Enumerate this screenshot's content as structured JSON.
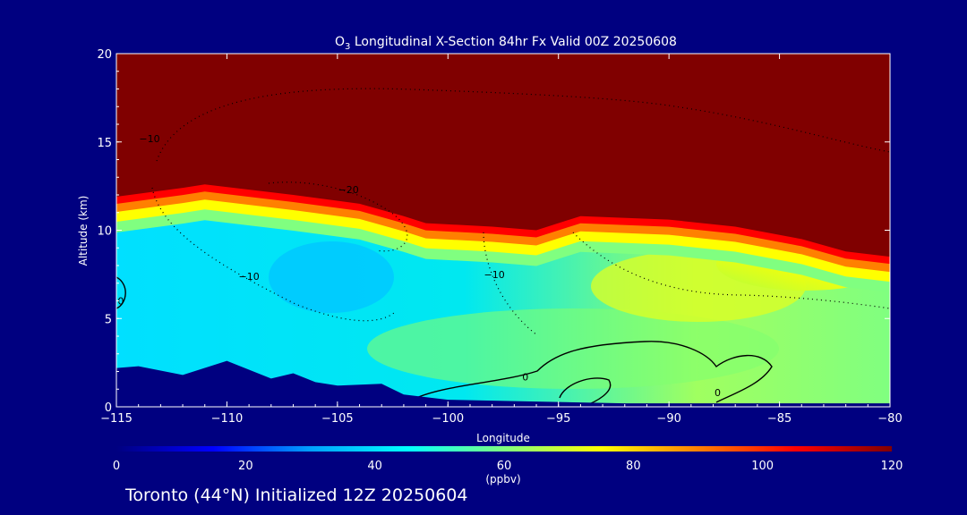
{
  "chart_data": {
    "type": "heatmap",
    "title_species": "O",
    "title_subscript": "3",
    "title_rest": " Longitudinal X-Section 84hr  Fx Valid 00Z 20250608",
    "xlabel": "Longitude",
    "ylabel": "Altitude (km)",
    "xlim": [
      -115,
      -80
    ],
    "ylim": [
      0,
      20
    ],
    "xticks": [
      -115,
      -110,
      -105,
      -100,
      -95,
      -90,
      -85,
      -80
    ],
    "xtick_labels": [
      "−115",
      "−110",
      "−105",
      "−100",
      "−95",
      "−90",
      "−85",
      "−80"
    ],
    "yticks": [
      0,
      5,
      10,
      15,
      20
    ],
    "colorbar": {
      "label": "(ppbv)",
      "range": [
        0,
        120
      ],
      "ticks": [
        0,
        20,
        40,
        60,
        80,
        100,
        120
      ],
      "colors": [
        "#000080",
        "#0000ff",
        "#00a0ff",
        "#00ffff",
        "#80ff80",
        "#ffff00",
        "#ff8000",
        "#ff0000",
        "#800000"
      ]
    },
    "tropopause_height_km": [
      {
        "lon": -115,
        "alt": 11.9
      },
      {
        "lon": -112,
        "alt": 12.4
      },
      {
        "lon": -111,
        "alt": 12.6
      },
      {
        "lon": -109,
        "alt": 12.3
      },
      {
        "lon": -107,
        "alt": 12.0
      },
      {
        "lon": -104,
        "alt": 11.5
      },
      {
        "lon": -102,
        "alt": 10.8
      },
      {
        "lon": -101,
        "alt": 10.4
      },
      {
        "lon": -98,
        "alt": 10.2
      },
      {
        "lon": -96,
        "alt": 10.0
      },
      {
        "lon": -94,
        "alt": 10.8
      },
      {
        "lon": -90,
        "alt": 10.6
      },
      {
        "lon": -87,
        "alt": 10.2
      },
      {
        "lon": -84,
        "alt": 9.5
      },
      {
        "lon": -82,
        "alt": 8.8
      },
      {
        "lon": -80,
        "alt": 8.5
      }
    ],
    "terrain_km": [
      {
        "lon": -115,
        "alt": 2.2
      },
      {
        "lon": -114,
        "alt": 2.3
      },
      {
        "lon": -112,
        "alt": 1.8
      },
      {
        "lon": -110,
        "alt": 2.6
      },
      {
        "lon": -108,
        "alt": 1.6
      },
      {
        "lon": -107,
        "alt": 1.9
      },
      {
        "lon": -106,
        "alt": 1.4
      },
      {
        "lon": -105,
        "alt": 1.2
      },
      {
        "lon": -103,
        "alt": 1.3
      },
      {
        "lon": -102,
        "alt": 0.7
      },
      {
        "lon": -100,
        "alt": 0.4
      },
      {
        "lon": -96,
        "alt": 0.3
      },
      {
        "lon": -92,
        "alt": 0.2
      },
      {
        "lon": -88,
        "alt": 0.2
      },
      {
        "lon": -84,
        "alt": 0.2
      },
      {
        "lon": -80,
        "alt": 0.2
      }
    ],
    "contour_labels": [
      {
        "text": "−10",
        "lon": -113.5,
        "alt": 15.0
      },
      {
        "text": "−20",
        "lon": -104.5,
        "alt": 12.1
      },
      {
        "text": "−10",
        "lon": -109.0,
        "alt": 7.2
      },
      {
        "text": "−10",
        "lon": -97.9,
        "alt": 7.3
      },
      {
        "text": "0",
        "lon": -114.8,
        "alt": 5.8
      },
      {
        "text": "0",
        "lon": -96.5,
        "alt": 1.5
      },
      {
        "text": "0",
        "lon": -87.8,
        "alt": 0.6
      }
    ]
  },
  "caption": "Toronto (44°N) Initialized 12Z 20250604"
}
